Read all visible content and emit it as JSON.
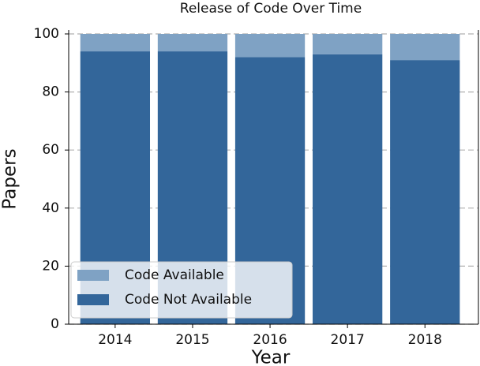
{
  "chart_data": {
    "type": "stacked_bar",
    "title": "Release of Code Over Time",
    "x_label": "Year",
    "y_label": "Papers",
    "categories": [
      "2014",
      "2015",
      "2016",
      "2017",
      "2018"
    ],
    "series": [
      {
        "name": "Code Not Available",
        "color": "#33669a",
        "values": [
          94,
          94,
          92,
          93,
          91
        ]
      },
      {
        "name": "Code Available",
        "color": "#7fa2c4",
        "values": [
          6,
          6,
          8,
          7,
          9
        ]
      }
    ],
    "ylim": [
      0,
      100
    ],
    "yticks": [
      0,
      20,
      40,
      60,
      80,
      100
    ],
    "grid": true,
    "legend": "lower left"
  }
}
